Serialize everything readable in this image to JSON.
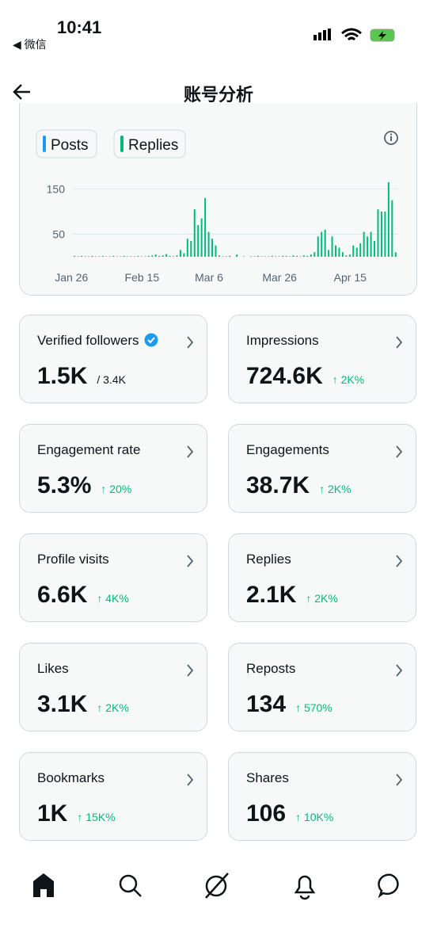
{
  "status_bar": {
    "time": "10:41",
    "back_app": "◀ 微信"
  },
  "header": {
    "title": "账号分析"
  },
  "chart_data": {
    "type": "bar",
    "legend": [
      "Posts",
      "Replies"
    ],
    "categories": [
      "Jan 26",
      null,
      null,
      null,
      null,
      null,
      null,
      null,
      null,
      null,
      null,
      null,
      null,
      null,
      null,
      null,
      null,
      null,
      null,
      null,
      "Feb 15",
      null,
      null,
      null,
      null,
      null,
      null,
      null,
      null,
      null,
      null,
      null,
      null,
      null,
      null,
      null,
      null,
      null,
      null,
      "Mar 6",
      null,
      null,
      null,
      null,
      null,
      null,
      null,
      null,
      null,
      null,
      null,
      null,
      null,
      null,
      null,
      null,
      null,
      null,
      null,
      "Mar 26",
      null,
      null,
      null,
      null,
      null,
      null,
      null,
      null,
      null,
      null,
      null,
      null,
      null,
      null,
      null,
      null,
      null,
      null,
      null,
      "Apr 15",
      null,
      null,
      null,
      null,
      null,
      null,
      null,
      null,
      null,
      null,
      null,
      null
    ],
    "series": [
      {
        "name": "Posts",
        "color": "#1d9bf0",
        "values": [
          0,
          0,
          0,
          0,
          0,
          0,
          0,
          0,
          0,
          0,
          0,
          0,
          0,
          0,
          0,
          0,
          0,
          0,
          0,
          0,
          0,
          0,
          0,
          0,
          0,
          0,
          0,
          0,
          0,
          0,
          0,
          0,
          0,
          0,
          0,
          0,
          0,
          0,
          0,
          0,
          0,
          0,
          0,
          0,
          0,
          0,
          0,
          0,
          0,
          0,
          0,
          0,
          0,
          0,
          0,
          0,
          0,
          0,
          0,
          0,
          0,
          0,
          0,
          0,
          0,
          0,
          0,
          0,
          0,
          0,
          0,
          0,
          0,
          0,
          0,
          0,
          0,
          0,
          0,
          0,
          0,
          0,
          0,
          0,
          0,
          0,
          0,
          0,
          0,
          0,
          0,
          0
        ]
      },
      {
        "name": "Replies",
        "color": "#00ba7c",
        "values": [
          2,
          1,
          2,
          1,
          1,
          2,
          1,
          1,
          2,
          1,
          1,
          2,
          1,
          1,
          2,
          1,
          1,
          1,
          2,
          1,
          1,
          2,
          3,
          5,
          2,
          3,
          6,
          2,
          1,
          3,
          15,
          8,
          40,
          35,
          105,
          70,
          85,
          130,
          55,
          40,
          25,
          3,
          1,
          1,
          2,
          0,
          5,
          0,
          1,
          0,
          1,
          1,
          2,
          1,
          1,
          1,
          2,
          1,
          1,
          2,
          2,
          1,
          3,
          2,
          1,
          3,
          2,
          5,
          10,
          45,
          55,
          60,
          15,
          45,
          25,
          20,
          10,
          3,
          5,
          25,
          20,
          30,
          55,
          45,
          55,
          35,
          105,
          100,
          100,
          165,
          125,
          10
        ]
      }
    ],
    "ylim": [
      0,
      170
    ],
    "yticks": [
      50,
      150
    ],
    "grid": true
  },
  "cards": [
    {
      "title": "Verified followers",
      "value": "1.5K",
      "change": "/ 3.4K",
      "verified": true
    },
    {
      "title": "Impressions",
      "value": "724.6K",
      "change": "↑ 2K%",
      "trend": "up"
    },
    {
      "title": "Engagement rate",
      "value": "5.3%",
      "change": "↑ 20%",
      "trend": "up"
    },
    {
      "title": "Engagements",
      "value": "38.7K",
      "change": "↑ 2K%",
      "trend": "up"
    },
    {
      "title": "Profile visits",
      "value": "6.6K",
      "change": "↑ 4K%",
      "trend": "up"
    },
    {
      "title": "Replies",
      "value": "2.1K",
      "change": "↑ 2K%",
      "trend": "up"
    },
    {
      "title": "Likes",
      "value": "3.1K",
      "change": "↑ 2K%",
      "trend": "up"
    },
    {
      "title": "Reposts",
      "value": "134",
      "change": "↑ 570%",
      "trend": "up"
    },
    {
      "title": "Bookmarks",
      "value": "1K",
      "change": "↑ 15K%",
      "trend": "up"
    },
    {
      "title": "Shares",
      "value": "106",
      "change": "↑ 10K%",
      "trend": "up"
    }
  ]
}
